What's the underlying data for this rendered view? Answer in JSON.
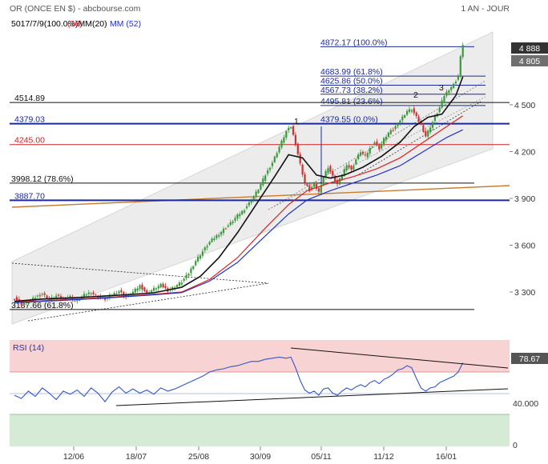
{
  "header": {
    "title": "OR (ONCE EN $) - abcbourse.com",
    "period": "1 AN - JOUR",
    "legend_overlap": "5017/7/9(100.0%)MM(20)",
    "mm_label": "MM (52)"
  },
  "colors": {
    "up_candle": "#3a9a3a",
    "down_candle": "#d03030",
    "ma_short": "#111111",
    "ma_mid": "#dd2222",
    "ma_long": "#2233cc",
    "level_blue": "#1a2a9a",
    "level_red": "#cc2222",
    "level_orange": "#c87a30",
    "channel_fill": "#ececec",
    "rsi_line": "#3355cc",
    "rsi_overbought_fill": "#f8d3d3",
    "rsi_oversold_fill": "#d6ebd6",
    "last_price_badge": "#333333",
    "prev_price_badge": "#6f6f6f",
    "rsi_badge": "#555555"
  },
  "chart_data": [
    {
      "type": "candlestick",
      "x_tick_labels": [
        "12/06",
        "18/07",
        "25/08",
        "30/09",
        "05/11",
        "11/12",
        "16/01"
      ],
      "y_tick_labels": [
        "3 300",
        "3 600",
        "3 900",
        "4 200",
        "4 500"
      ],
      "ylim": [
        3080,
        5050
      ],
      "price_badges": [
        "4 888",
        "4 805"
      ],
      "series": [
        {
          "name": "MM (52)",
          "color": "#2233cc"
        }
      ],
      "levels": [
        {
          "label": "4872.17  (100.0%)",
          "value": 4872.17
        },
        {
          "label": "4683.99  (61.8%)",
          "value": 4683.99
        },
        {
          "label": "4625.86  (50.0%)",
          "value": 4625.86
        },
        {
          "label": "4567.73  (38.2%)",
          "value": 4567.73
        },
        {
          "label": "4495.81  (23.6%)",
          "value": 4495.81
        },
        {
          "label": "4379.55  (0.0%)",
          "value": 4379.55
        },
        {
          "label": "4514.89",
          "value": 4514.89
        },
        {
          "label": "4379.03",
          "value": 4379.03
        },
        {
          "label": "4245.00",
          "value": 4245.0
        },
        {
          "label": "3998.12  (78.6%)",
          "value": 3998.12
        },
        {
          "label": "3887.70",
          "value": 3887.7
        },
        {
          "label": "3187.66  (61.8%)",
          "value": 3187.66
        }
      ],
      "wave_labels": [
        "1",
        "2",
        "3"
      ],
      "close_path": [
        [
          0,
          3260
        ],
        [
          3,
          3225
        ],
        [
          6,
          3240
        ],
        [
          9,
          3265
        ],
        [
          12,
          3290
        ],
        [
          15,
          3250
        ],
        [
          18,
          3275
        ],
        [
          21,
          3255
        ],
        [
          24,
          3270
        ],
        [
          27,
          3240
        ],
        [
          30,
          3280
        ],
        [
          33,
          3300
        ],
        [
          36,
          3265
        ],
        [
          39,
          3255
        ],
        [
          42,
          3285
        ],
        [
          45,
          3305
        ],
        [
          48,
          3270
        ],
        [
          51,
          3300
        ],
        [
          54,
          3340
        ],
        [
          57,
          3290
        ],
        [
          60,
          3320
        ],
        [
          63,
          3345
        ],
        [
          66,
          3310
        ],
        [
          69,
          3335
        ],
        [
          72,
          3365
        ],
        [
          75,
          3420
        ],
        [
          78,
          3500
        ],
        [
          81,
          3560
        ],
        [
          84,
          3620
        ],
        [
          87,
          3660
        ],
        [
          90,
          3700
        ],
        [
          93,
          3740
        ],
        [
          96,
          3790
        ],
        [
          99,
          3830
        ],
        [
          102,
          3890
        ],
        [
          105,
          3960
        ],
        [
          108,
          4050
        ],
        [
          111,
          4130
        ],
        [
          114,
          4230
        ],
        [
          117,
          4330
        ],
        [
          119,
          4360
        ],
        [
          121,
          4250
        ],
        [
          123,
          4120
        ],
        [
          125,
          4000
        ],
        [
          127,
          3950
        ],
        [
          129,
          3990
        ],
        [
          131,
          3940
        ],
        [
          133,
          4040
        ],
        [
          135,
          4100
        ],
        [
          137,
          4040
        ],
        [
          139,
          3990
        ],
        [
          141,
          4050
        ],
        [
          143,
          4120
        ],
        [
          145,
          4080
        ],
        [
          147,
          4150
        ],
        [
          149,
          4200
        ],
        [
          151,
          4170
        ],
        [
          153,
          4220
        ],
        [
          155,
          4260
        ],
        [
          157,
          4220
        ],
        [
          159,
          4280
        ],
        [
          161,
          4320
        ],
        [
          163,
          4340
        ],
        [
          165,
          4380
        ],
        [
          167,
          4420
        ],
        [
          169,
          4460
        ],
        [
          171,
          4470
        ],
        [
          173,
          4420
        ],
        [
          175,
          4370
        ],
        [
          177,
          4300
        ],
        [
          179,
          4360
        ],
        [
          181,
          4420
        ],
        [
          183,
          4480
        ],
        [
          185,
          4560
        ],
        [
          187,
          4600
        ],
        [
          189,
          4630
        ],
        [
          191,
          4680
        ],
        [
          192,
          4805
        ],
        [
          193,
          4888
        ]
      ],
      "moving_averages": [
        {
          "name": "MM (20)",
          "color": "#111111",
          "points": [
            [
              0,
              3240
            ],
            [
              12,
              3255
            ],
            [
              24,
              3262
            ],
            [
              36,
              3272
            ],
            [
              48,
              3282
            ],
            [
              60,
              3295
            ],
            [
              72,
              3330
            ],
            [
              80,
              3400
            ],
            [
              88,
              3520
            ],
            [
              96,
              3680
            ],
            [
              104,
              3860
            ],
            [
              112,
              4040
            ],
            [
              118,
              4180
            ],
            [
              124,
              4160
            ],
            [
              130,
              4050
            ],
            [
              136,
              4030
            ],
            [
              142,
              4050
            ],
            [
              150,
              4100
            ],
            [
              158,
              4170
            ],
            [
              166,
              4260
            ],
            [
              172,
              4360
            ],
            [
              178,
              4420
            ],
            [
              184,
              4440
            ],
            [
              190,
              4560
            ],
            [
              193,
              4680
            ]
          ]
        },
        {
          "name": "MM (50)",
          "color": "#dd2222",
          "points": [
            [
              0,
              3235
            ],
            [
              20,
              3250
            ],
            [
              40,
              3265
            ],
            [
              60,
              3285
            ],
            [
              72,
              3300
            ],
            [
              84,
              3380
            ],
            [
              96,
              3520
            ],
            [
              108,
              3710
            ],
            [
              118,
              3860
            ],
            [
              126,
              3950
            ],
            [
              136,
              4000
            ],
            [
              146,
              4040
            ],
            [
              156,
              4090
            ],
            [
              166,
              4160
            ],
            [
              176,
              4260
            ],
            [
              186,
              4360
            ],
            [
              193,
              4430
            ]
          ]
        },
        {
          "name": "MM (52)",
          "color": "#2233cc",
          "points": [
            [
              0,
              3232
            ],
            [
              20,
              3246
            ],
            [
              40,
              3262
            ],
            [
              60,
              3282
            ],
            [
              72,
              3296
            ],
            [
              84,
              3370
            ],
            [
              96,
              3490
            ],
            [
              108,
              3660
            ],
            [
              118,
              3800
            ],
            [
              126,
              3890
            ],
            [
              136,
              3950
            ],
            [
              146,
              4000
            ],
            [
              156,
              4050
            ],
            [
              166,
              4110
            ],
            [
              176,
              4200
            ],
            [
              186,
              4290
            ],
            [
              193,
              4340
            ]
          ]
        }
      ]
    },
    {
      "type": "line",
      "title": "RSI (14)",
      "value_badge": "78.67",
      "y_tick_labels": [
        "40.000",
        "0"
      ],
      "ylim": [
        0,
        100
      ],
      "overbought": 70,
      "oversold": 30,
      "points": [
        [
          0,
          48
        ],
        [
          3,
          45
        ],
        [
          6,
          52
        ],
        [
          9,
          47
        ],
        [
          12,
          55
        ],
        [
          15,
          50
        ],
        [
          18,
          44
        ],
        [
          21,
          52
        ],
        [
          24,
          49
        ],
        [
          27,
          53
        ],
        [
          30,
          47
        ],
        [
          33,
          55
        ],
        [
          36,
          50
        ],
        [
          39,
          42
        ],
        [
          42,
          51
        ],
        [
          45,
          56
        ],
        [
          48,
          50
        ],
        [
          51,
          54
        ],
        [
          54,
          50
        ],
        [
          57,
          53
        ],
        [
          60,
          49
        ],
        [
          63,
          55
        ],
        [
          66,
          52
        ],
        [
          69,
          54
        ],
        [
          72,
          57
        ],
        [
          75,
          60
        ],
        [
          78,
          63
        ],
        [
          81,
          66
        ],
        [
          84,
          70
        ],
        [
          87,
          72
        ],
        [
          90,
          73
        ],
        [
          93,
          75
        ],
        [
          96,
          76
        ],
        [
          99,
          78
        ],
        [
          102,
          80
        ],
        [
          105,
          80
        ],
        [
          108,
          82
        ],
        [
          111,
          83
        ],
        [
          114,
          84
        ],
        [
          117,
          83
        ],
        [
          119,
          84
        ],
        [
          121,
          74
        ],
        [
          123,
          62
        ],
        [
          125,
          53
        ],
        [
          127,
          50
        ],
        [
          129,
          52
        ],
        [
          131,
          48
        ],
        [
          133,
          54
        ],
        [
          135,
          55
        ],
        [
          137,
          50
        ],
        [
          139,
          48
        ],
        [
          141,
          52
        ],
        [
          143,
          55
        ],
        [
          145,
          53
        ],
        [
          147,
          56
        ],
        [
          149,
          58
        ],
        [
          151,
          56
        ],
        [
          153,
          60
        ],
        [
          155,
          62
        ],
        [
          157,
          59
        ],
        [
          159,
          63
        ],
        [
          161,
          65
        ],
        [
          163,
          68
        ],
        [
          165,
          72
        ],
        [
          167,
          73
        ],
        [
          169,
          76
        ],
        [
          171,
          74
        ],
        [
          173,
          64
        ],
        [
          175,
          55
        ],
        [
          177,
          52
        ],
        [
          179,
          55
        ],
        [
          181,
          56
        ],
        [
          183,
          60
        ],
        [
          185,
          62
        ],
        [
          187,
          64
        ],
        [
          189,
          66
        ],
        [
          191,
          70
        ],
        [
          193,
          78.67
        ]
      ]
    }
  ]
}
